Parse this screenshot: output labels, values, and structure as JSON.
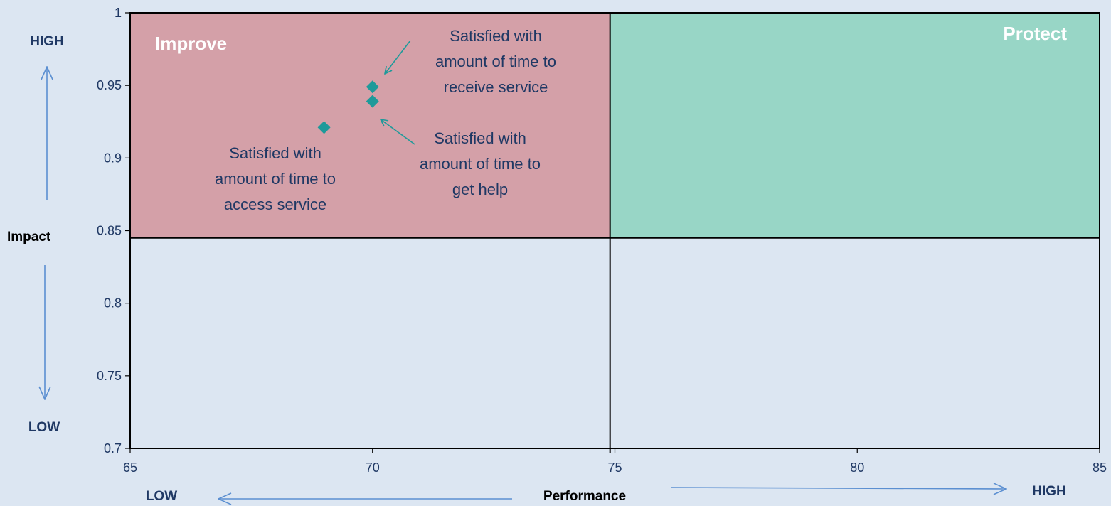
{
  "chart_data": {
    "type": "scatter",
    "xlabel": "Performance",
    "ylabel": "Impact",
    "xlim": [
      65,
      85
    ],
    "ylim": [
      0.7,
      1
    ],
    "x_ticks": [
      "65",
      "70",
      "75",
      "80",
      "85"
    ],
    "y_ticks": [
      "0.7",
      "0.75",
      "0.8",
      "0.85",
      "0.9",
      "0.95",
      "1"
    ],
    "grid": false,
    "divider_x": 74.9,
    "divider_y": 0.845,
    "quadrants": [
      {
        "label": "Improve",
        "x_range": [
          65,
          74.9
        ],
        "y_range": [
          0.845,
          1
        ],
        "color": "#d4a0a8",
        "label_pos": "top-left"
      },
      {
        "label": "Protect",
        "x_range": [
          74.9,
          85
        ],
        "y_range": [
          0.845,
          1
        ],
        "color": "#98d6c6",
        "label_pos": "top-right"
      }
    ],
    "points": [
      {
        "x": 70,
        "y": 0.949,
        "label": [
          "Satisfied with",
          "amount of time to",
          "receive service"
        ]
      },
      {
        "x": 70,
        "y": 0.939,
        "label": [
          "Satisfied with",
          "amount of time to",
          "get help"
        ]
      },
      {
        "x": 69,
        "y": 0.921,
        "label": [
          "Satisfied with",
          "amount of time to",
          "access service"
        ]
      }
    ],
    "marker_color": "#1e9a9a",
    "x_direction": {
      "low": "LOW",
      "high": "HIGH"
    },
    "y_direction": {
      "low": "LOW",
      "high": "HIGH"
    }
  },
  "colors": {
    "background": "#dce6f2",
    "axis": "#000000",
    "arrow": "#5b8fd1",
    "text": "#1f3864",
    "annotation_arrow": "#1e9a9a"
  }
}
